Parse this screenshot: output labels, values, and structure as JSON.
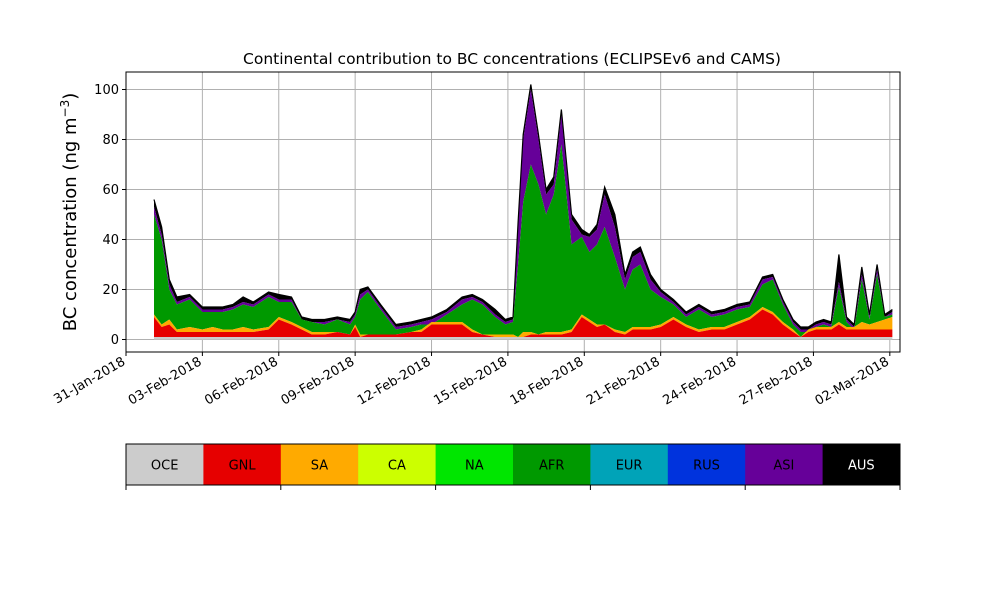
{
  "chart_data": {
    "type": "area",
    "title": "Continental contribution to BC concentrations (ECLIPSEv6 and CAMS)",
    "ylabel": "BC concentration (ng m",
    "ylabel_sup": "−3",
    "ylabel_close": ")",
    "xlabel": "",
    "ylim": [
      -5,
      107
    ],
    "yticks": [
      0,
      20,
      40,
      60,
      80,
      100
    ],
    "xlim_days": [
      -1.0,
      29.4
    ],
    "xtick_labels": [
      "31-Jan-2018",
      "03-Feb-2018",
      "06-Feb-2018",
      "09-Feb-2018",
      "12-Feb-2018",
      "15-Feb-2018",
      "18-Feb-2018",
      "21-Feb-2018",
      "24-Feb-2018",
      "27-Feb-2018",
      "02-Mar-2018"
    ],
    "grid": true,
    "series": [
      {
        "name": "OCE",
        "color": "#cccccc"
      },
      {
        "name": "GNL",
        "color": "#e60000"
      },
      {
        "name": "SA",
        "color": "#ffaa00"
      },
      {
        "name": "CA",
        "color": "#ccff00"
      },
      {
        "name": "NA",
        "color": "#00e600"
      },
      {
        "name": "AFR",
        "color": "#009900"
      },
      {
        "name": "EUR",
        "color": "#00a3b8"
      },
      {
        "name": "RUS",
        "color": "#0033dd"
      },
      {
        "name": "ASI",
        "color": "#660099"
      },
      {
        "name": "AUS",
        "color": "#000000"
      }
    ],
    "stacked_cumulative": {
      "x_dates": [
        "01-Feb-2018",
        "01-Feb-2018",
        "02-Feb-2018",
        "02-Feb-2018",
        "02-Feb-2018",
        "03-Feb-2018",
        "03-Feb-2018",
        "03-Feb-2018",
        "04-Feb-2018",
        "04-Feb-2018",
        "05-Feb-2018",
        "05-Feb-2018",
        "06-Feb-2018",
        "06-Feb-2018",
        "06-Feb-2018",
        "07-Feb-2018",
        "07-Feb-2018",
        "08-Feb-2018",
        "08-Feb-2018",
        "09-Feb-2018",
        "09-Feb-2018",
        "09-Feb-2018",
        "10-Feb-2018",
        "10-Feb-2018",
        "11-Feb-2018",
        "11-Feb-2018",
        "12-Feb-2018",
        "12-Feb-2018",
        "13-Feb-2018",
        "13-Feb-2018",
        "14-Feb-2018",
        "14-Feb-2018",
        "14-Feb-2018",
        "15-Feb-2018",
        "15-Feb-2018",
        "15-Feb-2018",
        "15-Feb-2018",
        "16-Feb-2018",
        "16-Feb-2018",
        "16-Feb-2018",
        "17-Feb-2018",
        "17-Feb-2018",
        "17-Feb-2018",
        "17-Feb-2018",
        "18-Feb-2018",
        "18-Feb-2018",
        "18-Feb-2018",
        "19-Feb-2018",
        "19-Feb-2018",
        "19-Feb-2018",
        "20-Feb-2018",
        "20-Feb-2018",
        "21-Feb-2018",
        "21-Feb-2018",
        "22-Feb-2018",
        "22-Feb-2018",
        "23-Feb-2018",
        "23-Feb-2018",
        "23-Feb-2018",
        "24-Feb-2018",
        "24-Feb-2018",
        "25-Feb-2018",
        "25-Feb-2018",
        "25-Feb-2018",
        "26-Feb-2018",
        "26-Feb-2018",
        "26-Feb-2018",
        "27-Feb-2018",
        "27-Feb-2018",
        "27-Feb-2018",
        "27-Feb-2018",
        "28-Feb-2018",
        "28-Feb-2018",
        "28-Feb-2018",
        "28-Feb-2018",
        "01-Mar-2018"
      ],
      "x": [
        0.1,
        0.4,
        0.7,
        1.0,
        1.5,
        2.0,
        2.4,
        2.8,
        3.2,
        3.6,
        4.0,
        4.6,
        5.0,
        5.5,
        5.9,
        6.3,
        6.8,
        7.3,
        7.8,
        8.0,
        8.2,
        8.5,
        9.0,
        9.6,
        10.2,
        10.6,
        11.0,
        11.6,
        12.2,
        12.6,
        13.0,
        13.5,
        13.9,
        14.2,
        14.4,
        14.6,
        14.9,
        15.2,
        15.5,
        15.8,
        16.1,
        16.5,
        16.9,
        17.2,
        17.5,
        17.8,
        18.2,
        18.6,
        18.9,
        19.2,
        19.6,
        20.0,
        20.5,
        21.0,
        21.5,
        22.0,
        22.5,
        23.0,
        23.5,
        24.0,
        24.4,
        24.8,
        25.2,
        25.5,
        25.8,
        26.1,
        26.4,
        26.7,
        27.0,
        27.3,
        27.6,
        27.9,
        28.2,
        28.5,
        28.8,
        29.1
      ],
      "values": [
        [
          1,
          1,
          1,
          1,
          1,
          1,
          1,
          1,
          1,
          1,
          1,
          1,
          1,
          1,
          1,
          1,
          1,
          1,
          1,
          1,
          1,
          1,
          1,
          1,
          1,
          1,
          1,
          1,
          1,
          1,
          1,
          1,
          1,
          1,
          1,
          1,
          1,
          1,
          1,
          1,
          1,
          1,
          1,
          1,
          1,
          1,
          1,
          1,
          1,
          1,
          1,
          1,
          1,
          1,
          1,
          1,
          1,
          1,
          1,
          1,
          1,
          1,
          1,
          1,
          1,
          1,
          1,
          1,
          1,
          1,
          1,
          1,
          1,
          1,
          1,
          1
        ],
        [
          9,
          5,
          6,
          3,
          3,
          3,
          3,
          3,
          3,
          3,
          3,
          4,
          8,
          6,
          4,
          2,
          2,
          3,
          2,
          5,
          1,
          2,
          2,
          2,
          3,
          3,
          6,
          6,
          6,
          3,
          2,
          1,
          1,
          1,
          1,
          1,
          2,
          2,
          2,
          2,
          2,
          3,
          9,
          7,
          5,
          6,
          3,
          2,
          4,
          4,
          4,
          5,
          8,
          5,
          3,
          4,
          4,
          6,
          8,
          12,
          10,
          6,
          3,
          1,
          3,
          4,
          4,
          4,
          6,
          4,
          4,
          4,
          4,
          4,
          4,
          4
        ],
        [
          10,
          6,
          8,
          4,
          5,
          4,
          5,
          4,
          4,
          5,
          4,
          5,
          9,
          7,
          5,
          3,
          3,
          3,
          2,
          6,
          2,
          2,
          2,
          2,
          3,
          4,
          7,
          7,
          7,
          4,
          2,
          2,
          2,
          2,
          1,
          3,
          3,
          2,
          3,
          3,
          3,
          4,
          10,
          8,
          6,
          6,
          4,
          3,
          5,
          5,
          5,
          6,
          9,
          6,
          4,
          5,
          5,
          7,
          9,
          13,
          11,
          7,
          4,
          1,
          4,
          5,
          5,
          5,
          7,
          5,
          5,
          7,
          6,
          7,
          8,
          9
        ],
        [
          10,
          6,
          8,
          4,
          5,
          4,
          5,
          4,
          4,
          5,
          4,
          5,
          9,
          7,
          5,
          3,
          3,
          3,
          2,
          6,
          2,
          2,
          2,
          2,
          3,
          4,
          7,
          7,
          7,
          4,
          2,
          2,
          2,
          2,
          1,
          3,
          3,
          2,
          3,
          3,
          3,
          4,
          10,
          8,
          6,
          6,
          4,
          3,
          5,
          5,
          5,
          6,
          9,
          6,
          4,
          5,
          5,
          7,
          9,
          13,
          11,
          7,
          4,
          1,
          4,
          5,
          5,
          5,
          7,
          5,
          5,
          7,
          6,
          7,
          8,
          9
        ],
        [
          10,
          6,
          8,
          4,
          5,
          4,
          5,
          4,
          4,
          5,
          4,
          5,
          9,
          7,
          5,
          3,
          3,
          3,
          2,
          6,
          2,
          2,
          2,
          2,
          3,
          4,
          7,
          7,
          7,
          4,
          2,
          2,
          2,
          2,
          1,
          3,
          3,
          2,
          3,
          3,
          3,
          4,
          10,
          8,
          6,
          6,
          4,
          3,
          5,
          5,
          5,
          6,
          9,
          6,
          4,
          5,
          5,
          7,
          9,
          13,
          11,
          7,
          4,
          1,
          4,
          5,
          5,
          5,
          7,
          5,
          5,
          7,
          6,
          7,
          8,
          9
        ],
        [
          50,
          40,
          20,
          14,
          16,
          11,
          11,
          11,
          12,
          14,
          13,
          17,
          15,
          15,
          8,
          7,
          6,
          8,
          6,
          9,
          16,
          19,
          12,
          4,
          5,
          6,
          6,
          10,
          14,
          16,
          14,
          9,
          6,
          7,
          30,
          55,
          70,
          62,
          50,
          58,
          78,
          38,
          41,
          35,
          38,
          45,
          33,
          20,
          28,
          30,
          20,
          17,
          14,
          9,
          12,
          9,
          10,
          12,
          13,
          22,
          24,
          14,
          6,
          3,
          3,
          5,
          6,
          5,
          21,
          7,
          4,
          24,
          8,
          26,
          9,
          10
        ],
        [
          50,
          40,
          20,
          14,
          16,
          11,
          11,
          11,
          12,
          14,
          13,
          17,
          15,
          15,
          8,
          7,
          6,
          8,
          6,
          9,
          16,
          19,
          12,
          4,
          5,
          6,
          6,
          10,
          14,
          16,
          14,
          9,
          6,
          7,
          30,
          55,
          70,
          62,
          50,
          58,
          78,
          38,
          41,
          35,
          38,
          45,
          33,
          20,
          28,
          30,
          20,
          17,
          14,
          9,
          12,
          9,
          10,
          12,
          13,
          22,
          24,
          14,
          6,
          3,
          3,
          5,
          6,
          5,
          21,
          7,
          4,
          24,
          8,
          26,
          9,
          10
        ],
        [
          50,
          40,
          20,
          14,
          16,
          11,
          11,
          11,
          12,
          14,
          13,
          17,
          15,
          15,
          8,
          7,
          6,
          8,
          6,
          9,
          16,
          19,
          12,
          4,
          5,
          6,
          6,
          10,
          14,
          16,
          14,
          9,
          6,
          7,
          30,
          55,
          70,
          62,
          50,
          58,
          78,
          38,
          41,
          35,
          38,
          45,
          33,
          20,
          28,
          30,
          20,
          17,
          14,
          9,
          12,
          9,
          10,
          12,
          13,
          22,
          24,
          14,
          6,
          3,
          3,
          5,
          6,
          5,
          21,
          7,
          4,
          24,
          8,
          26,
          9,
          10
        ],
        [
          53,
          42,
          22,
          15,
          17,
          12,
          12,
          12,
          13,
          15,
          14,
          18,
          16,
          16,
          8,
          7,
          7,
          8,
          7,
          10,
          18,
          20,
          13,
          5,
          6,
          7,
          8,
          11,
          16,
          17,
          15,
          10,
          7,
          8,
          45,
          80,
          100,
          80,
          58,
          62,
          90,
          48,
          42,
          41,
          44,
          58,
          45,
          24,
          33,
          35,
          24,
          19,
          15,
          10,
          13,
          10,
          11,
          13,
          14,
          24,
          25,
          15,
          7,
          4,
          4,
          6,
          7,
          6,
          23,
          8,
          5,
          26,
          9,
          28,
          9,
          11
        ],
        [
          56,
          45,
          24,
          17,
          18,
          13,
          13,
          13,
          14,
          17,
          15,
          19,
          18,
          17,
          9,
          8,
          8,
          9,
          8,
          11,
          20,
          21,
          14,
          6,
          7,
          8,
          9,
          12,
          17,
          18,
          16,
          12,
          8,
          9,
          47,
          82,
          102,
          82,
          60,
          65,
          92,
          50,
          44,
          42,
          46,
          61,
          50,
          26,
          35,
          37,
          26,
          20,
          16,
          11,
          14,
          11,
          12,
          14,
          15,
          25,
          26,
          16,
          8,
          5,
          5,
          7,
          8,
          7,
          34,
          9,
          6,
          29,
          10,
          30,
          10,
          12
        ]
      ]
    }
  }
}
